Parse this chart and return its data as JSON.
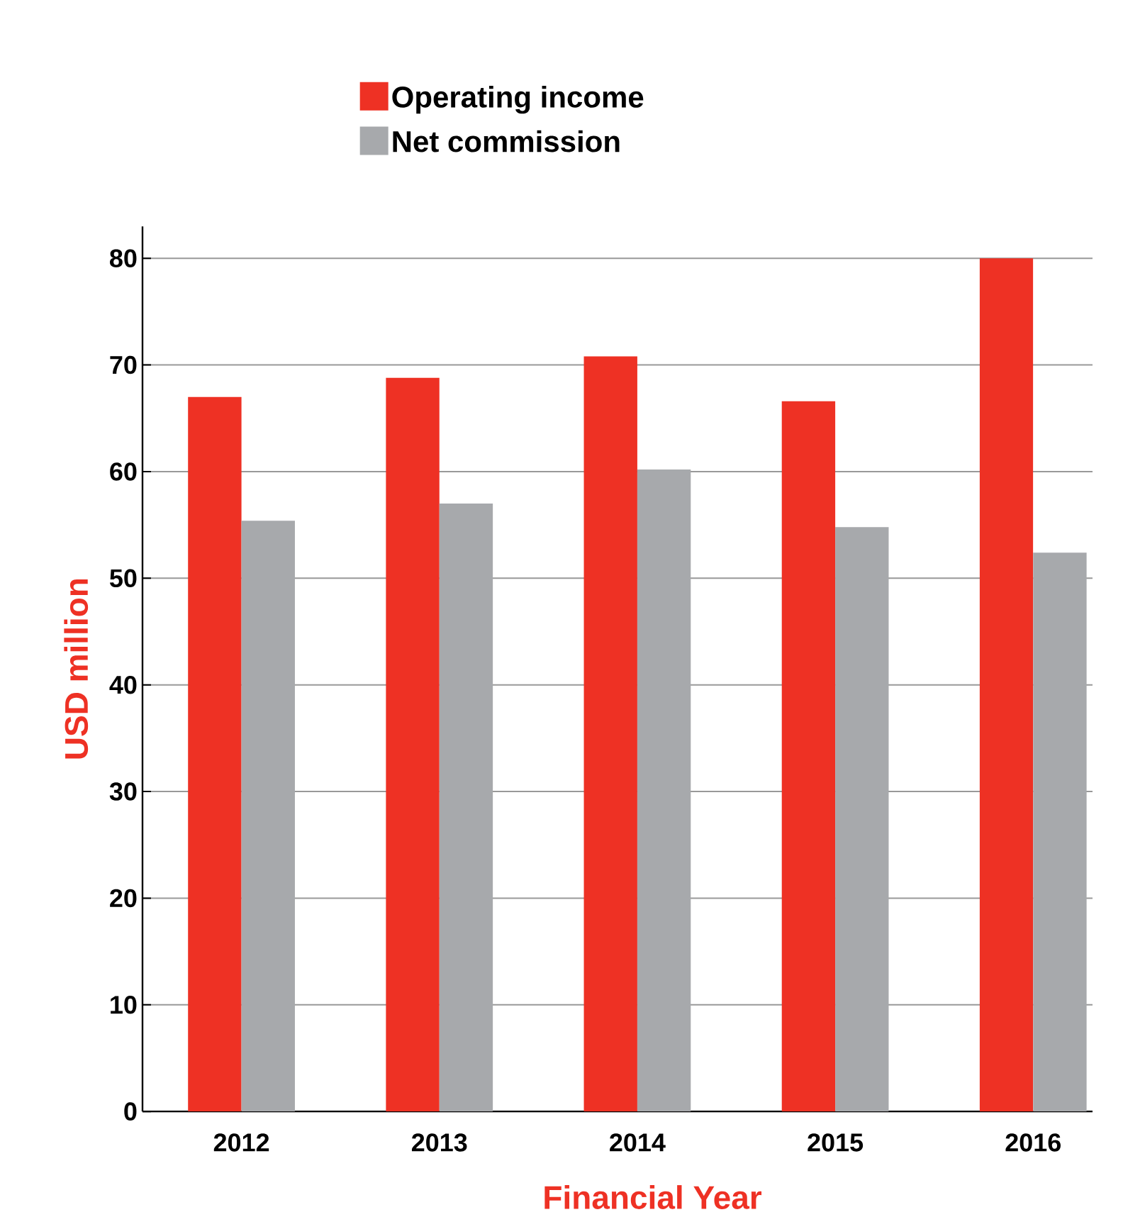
{
  "chart_data": {
    "type": "bar",
    "categories": [
      "2012",
      "2013",
      "2014",
      "2015",
      "2016"
    ],
    "series": [
      {
        "name": "Operating income",
        "color": "#ee3124",
        "values": [
          67,
          68.8,
          70.8,
          66.6,
          80
        ]
      },
      {
        "name": "Net commission",
        "color": "#a7a9ac",
        "values": [
          55.4,
          57,
          60.2,
          54.8,
          52.4
        ]
      }
    ],
    "xlabel": "Financial Year",
    "ylabel": "USD million",
    "ylim": [
      0,
      83
    ],
    "yticks": [
      0,
      10,
      20,
      30,
      40,
      50,
      60,
      70,
      80
    ],
    "grid": "y",
    "legend": "top"
  }
}
